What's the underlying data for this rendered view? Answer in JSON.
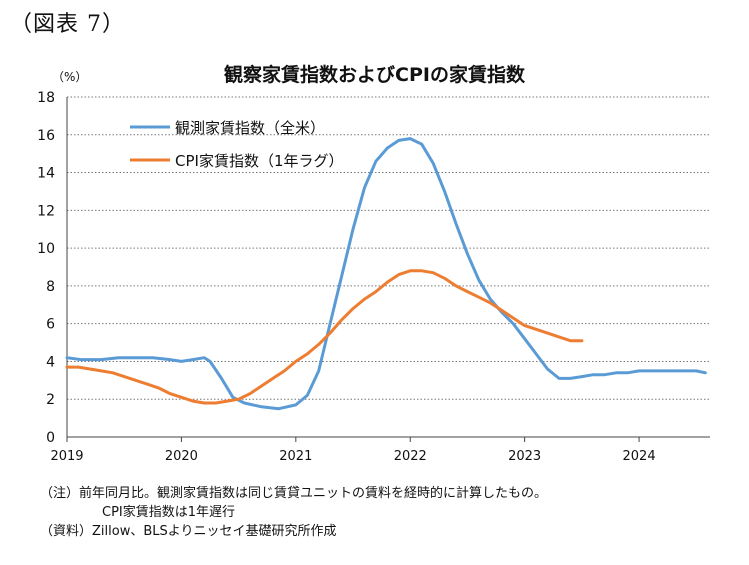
{
  "figure_label": "（図表 7）",
  "chart_data": {
    "type": "line",
    "title": "観察家賃指数およびCPIの家賃指数",
    "unit_label": "（%）",
    "ylim": [
      0,
      18
    ],
    "yticks": [
      0,
      2,
      4,
      6,
      8,
      10,
      12,
      14,
      16,
      18
    ],
    "xlim": [
      2019,
      2024.62
    ],
    "xticks": [
      2019,
      2020,
      2021,
      2022,
      2023,
      2024
    ],
    "xtick_labels": [
      "2019",
      "2020",
      "2021",
      "2022",
      "2023",
      "2024"
    ],
    "grid": "horizontal dotted",
    "legend_position": "top-left",
    "series": [
      {
        "name": "観測家賃指数（全米）",
        "color": "#5b9bd5",
        "x": [
          2019.0,
          2019.12,
          2019.3,
          2019.45,
          2019.6,
          2019.75,
          2019.9,
          2020.0,
          2020.1,
          2020.2,
          2020.25,
          2020.35,
          2020.45,
          2020.55,
          2020.7,
          2020.85,
          2021.0,
          2021.1,
          2021.2,
          2021.3,
          2021.4,
          2021.5,
          2021.6,
          2021.7,
          2021.8,
          2021.9,
          2022.0,
          2022.1,
          2022.2,
          2022.3,
          2022.4,
          2022.5,
          2022.6,
          2022.7,
          2022.8,
          2022.9,
          2023.0,
          2023.1,
          2023.2,
          2023.3,
          2023.4,
          2023.5,
          2023.6,
          2023.7,
          2023.8,
          2023.9,
          2024.0,
          2024.1,
          2024.2,
          2024.3,
          2024.4,
          2024.5,
          2024.58
        ],
        "values": [
          4.2,
          4.1,
          4.1,
          4.2,
          4.2,
          4.2,
          4.1,
          4.0,
          4.1,
          4.2,
          4.0,
          3.1,
          2.1,
          1.8,
          1.6,
          1.5,
          1.7,
          2.2,
          3.5,
          6.0,
          8.5,
          11.0,
          13.2,
          14.6,
          15.3,
          15.7,
          15.8,
          15.5,
          14.5,
          13.0,
          11.3,
          9.7,
          8.3,
          7.3,
          6.6,
          6.0,
          5.2,
          4.4,
          3.6,
          3.1,
          3.1,
          3.2,
          3.3,
          3.3,
          3.4,
          3.4,
          3.5,
          3.5,
          3.5,
          3.5,
          3.5,
          3.5,
          3.4
        ]
      },
      {
        "name": "CPI家賃指数（1年ラグ）",
        "color": "#ed7d31",
        "x": [
          2019.0,
          2019.1,
          2019.2,
          2019.3,
          2019.4,
          2019.5,
          2019.6,
          2019.7,
          2019.8,
          2019.9,
          2020.0,
          2020.1,
          2020.2,
          2020.3,
          2020.4,
          2020.5,
          2020.6,
          2020.7,
          2020.8,
          2020.9,
          2021.0,
          2021.1,
          2021.2,
          2021.3,
          2021.4,
          2021.5,
          2021.6,
          2021.7,
          2021.8,
          2021.9,
          2022.0,
          2022.1,
          2022.2,
          2022.3,
          2022.4,
          2022.5,
          2022.6,
          2022.7,
          2022.8,
          2022.9,
          2023.0,
          2023.1,
          2023.2,
          2023.3,
          2023.4,
          2023.5
        ],
        "values": [
          3.7,
          3.7,
          3.6,
          3.5,
          3.4,
          3.2,
          3.0,
          2.8,
          2.6,
          2.3,
          2.1,
          1.9,
          1.8,
          1.8,
          1.9,
          2.0,
          2.3,
          2.7,
          3.1,
          3.5,
          4.0,
          4.4,
          4.9,
          5.5,
          6.2,
          6.8,
          7.3,
          7.7,
          8.2,
          8.6,
          8.8,
          8.8,
          8.7,
          8.4,
          8.0,
          7.7,
          7.4,
          7.1,
          6.7,
          6.3,
          5.9,
          5.7,
          5.5,
          5.3,
          5.1,
          5.1
        ]
      }
    ]
  },
  "notes": {
    "line1": "（注）前年同月比。観測家賃指数は同じ賃貸ユニットの賃料を経時的に計算したもの。",
    "line2": "CPI家賃指数は1年遅行",
    "line3": "（資料）Zillow、BLSよりニッセイ基礎研究所作成"
  }
}
